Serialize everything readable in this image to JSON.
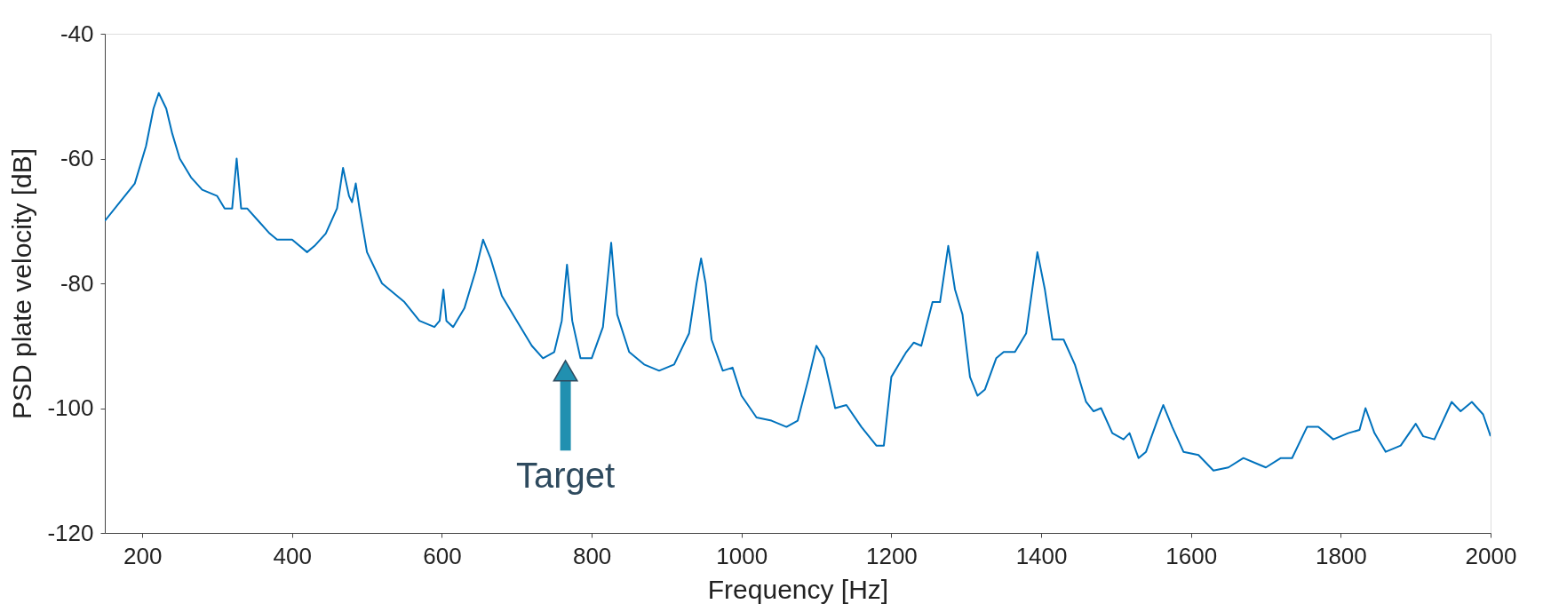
{
  "chart_data": {
    "type": "line",
    "xlabel": "Frequency [Hz]",
    "ylabel": "PSD plate velocity [dB]",
    "xlim": [
      150,
      2000
    ],
    "ylim": [
      -120,
      -40
    ],
    "xticks": [
      200,
      400,
      600,
      800,
      1000,
      1200,
      1400,
      1600,
      1800,
      2000
    ],
    "yticks": [
      -120,
      -100,
      -80,
      -60,
      -40
    ],
    "grid": false,
    "line_style": "solid",
    "annotations": [
      {
        "text": "Target",
        "x": 765,
        "y": -94
      }
    ],
    "series": [
      {
        "color": "#0072bd",
        "x": [
          150,
          170,
          190,
          205,
          215,
          222,
          232,
          240,
          250,
          265,
          280,
          300,
          310,
          320,
          326,
          332,
          340,
          355,
          370,
          380,
          400,
          420,
          430,
          445,
          460,
          468,
          476,
          480,
          485,
          490,
          500,
          520,
          550,
          570,
          590,
          597,
          602,
          606,
          615,
          630,
          645,
          655,
          665,
          680,
          700,
          720,
          735,
          750,
          760,
          767,
          774,
          785,
          800,
          815,
          826,
          834,
          850,
          870,
          890,
          910,
          930,
          940,
          946,
          952,
          960,
          975,
          988,
          1000,
          1020,
          1040,
          1060,
          1075,
          1090,
          1100,
          1110,
          1125,
          1140,
          1160,
          1180,
          1190,
          1200,
          1210,
          1220,
          1230,
          1240,
          1255,
          1265,
          1276,
          1285,
          1295,
          1305,
          1315,
          1325,
          1340,
          1350,
          1365,
          1380,
          1395,
          1405,
          1415,
          1430,
          1445,
          1460,
          1470,
          1480,
          1495,
          1510,
          1518,
          1530,
          1540,
          1555,
          1563,
          1575,
          1590,
          1610,
          1630,
          1650,
          1670,
          1690,
          1700,
          1720,
          1735,
          1755,
          1770,
          1790,
          1810,
          1825,
          1833,
          1845,
          1860,
          1880,
          1900,
          1910,
          1925,
          1948,
          1960,
          1975,
          1990,
          2000
        ],
        "values": [
          -70,
          -67,
          -64,
          -58,
          -52,
          -49.5,
          -52,
          -56,
          -60,
          -63,
          -65,
          -66,
          -68,
          -68,
          -60,
          -68,
          -68,
          -70,
          -72,
          -73,
          -73,
          -75,
          -74,
          -72,
          -68,
          -61.5,
          -66,
          -67,
          -64,
          -68,
          -75,
          -80,
          -83,
          -86,
          -87,
          -86,
          -81,
          -86,
          -87,
          -84,
          -78,
          -73,
          -76,
          -82,
          -86,
          -90,
          -92,
          -91,
          -86,
          -77,
          -86,
          -92,
          -92,
          -87,
          -73.5,
          -85,
          -91,
          -93,
          -94,
          -93,
          -88,
          -80,
          -76,
          -80,
          -89,
          -94,
          -93.5,
          -98,
          -101.5,
          -102,
          -103,
          -102,
          -95,
          -90,
          -92,
          -100,
          -99.5,
          -103,
          -106,
          -106,
          -95,
          -93,
          -91,
          -89.5,
          -90,
          -83,
          -83,
          -74,
          -81,
          -85,
          -95,
          -98,
          -97,
          -92,
          -91,
          -91,
          -88,
          -75,
          -81,
          -89,
          -89,
          -93,
          -99,
          -100.5,
          -100,
          -104,
          -105,
          -104,
          -108,
          -107,
          -102,
          -99.5,
          -103,
          -107,
          -107.5,
          -110,
          -109.5,
          -108,
          -109,
          -109.5,
          -108,
          -108,
          -103,
          -103,
          -105,
          -104,
          -103.5,
          -100,
          -104,
          -107,
          -106,
          -102.5,
          -104.5,
          -105,
          -99,
          -100.5,
          -99,
          -101,
          -104.5
        ]
      }
    ]
  }
}
